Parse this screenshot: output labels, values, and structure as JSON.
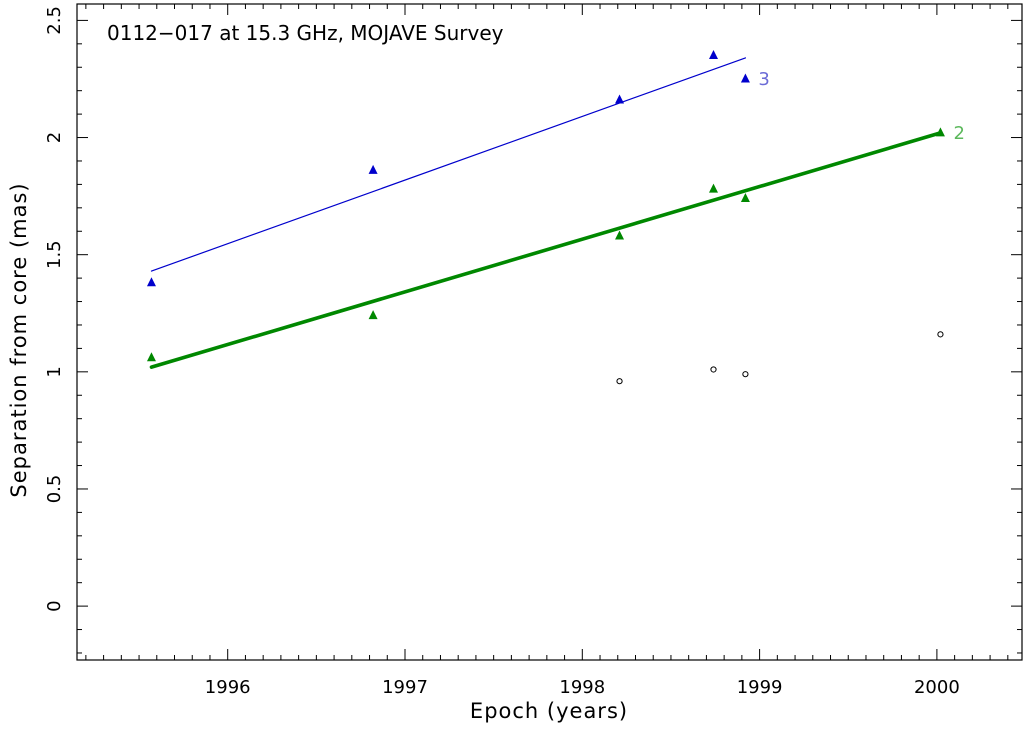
{
  "chart_data": {
    "type": "scatter",
    "title": "0112−017 at 15.3 GHz, MOJAVE Survey",
    "xlabel": "Epoch (years)",
    "ylabel": "Separation from core (mas)",
    "xlim": [
      1995.15,
      2000.48
    ],
    "ylim": [
      -0.23,
      2.57
    ],
    "xticks": [
      1996,
      1997,
      1998,
      1999,
      2000
    ],
    "xtick_labels": [
      "1996",
      "1997",
      "1998",
      "1999",
      "2000"
    ],
    "yticks": [
      0,
      0.5,
      1,
      1.5,
      2,
      2.5
    ],
    "ytick_labels": [
      "0",
      "0.5",
      "1",
      "1.5",
      "2",
      "2.5"
    ],
    "grid": false,
    "series": [
      {
        "name": "3",
        "color": "#0000cc",
        "label_color": "#6b6bd6",
        "marker": "triangle",
        "x": [
          1995.57,
          1996.82,
          1998.21,
          1998.74,
          1998.92
        ],
        "y": [
          1.38,
          1.86,
          2.16,
          2.35,
          2.25
        ],
        "fit": {
          "x": [
            1995.57,
            1998.92
          ],
          "y": [
            1.43,
            2.34
          ]
        }
      },
      {
        "name": "2",
        "color": "#008800",
        "label_color": "#5cb85c",
        "marker": "triangle",
        "x": [
          1995.57,
          1996.82,
          1998.21,
          1998.74,
          1998.92,
          2000.02
        ],
        "y": [
          1.06,
          1.24,
          1.58,
          1.78,
          1.74,
          2.02
        ],
        "fit": {
          "x": [
            1995.57,
            2000.02
          ],
          "y": [
            1.02,
            2.02
          ]
        }
      },
      {
        "marker": "circle",
        "color": "#000000",
        "x": [
          1998.21,
          1998.74,
          1998.92,
          2000.02
        ],
        "y": [
          0.96,
          1.01,
          0.99,
          1.16
        ]
      }
    ]
  }
}
